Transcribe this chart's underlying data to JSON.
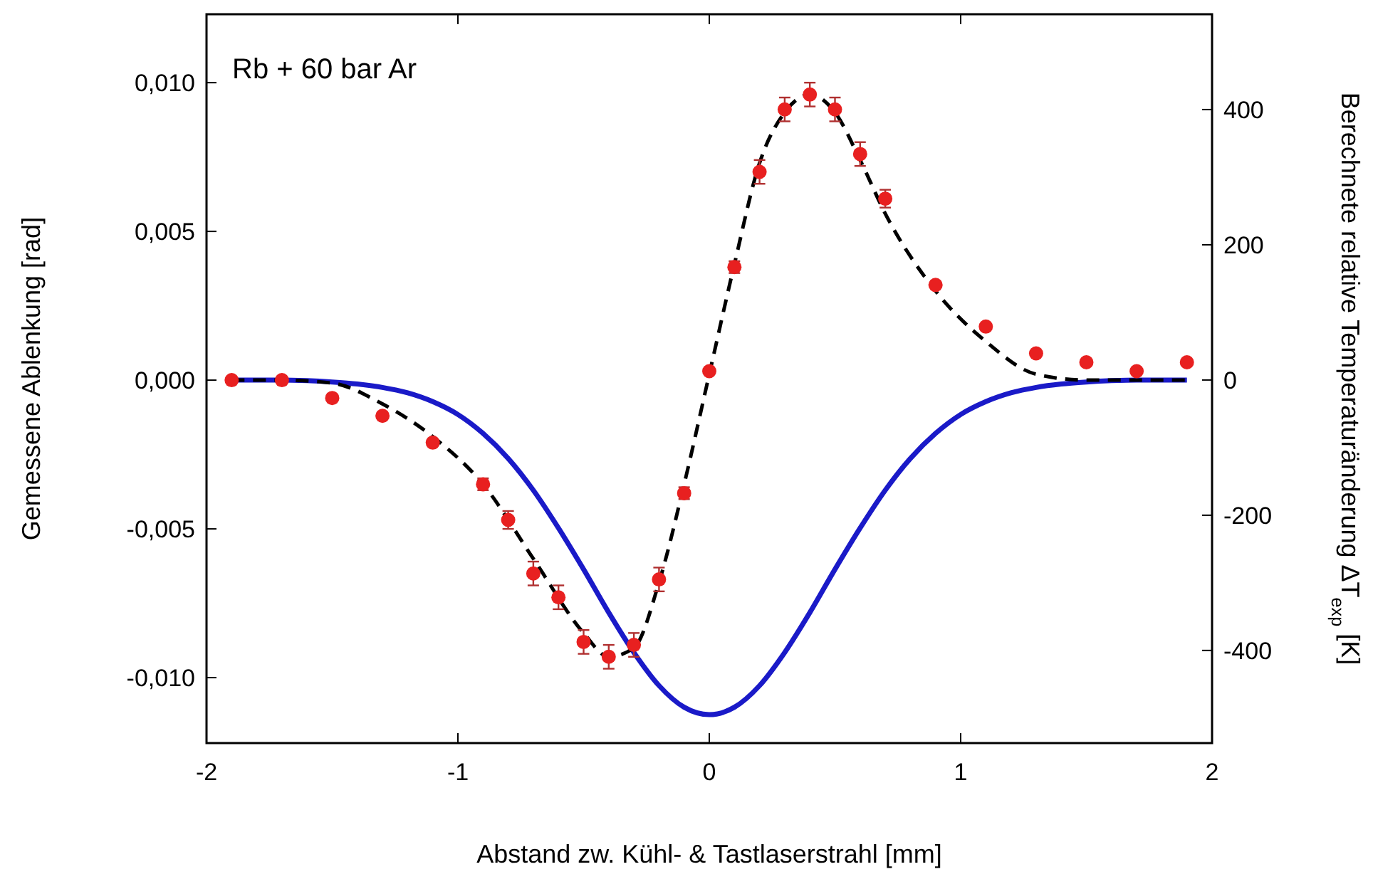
{
  "chart_data": {
    "type": "scatter",
    "xlabel": "Abstand zw. Kühl- & Tastlaserstrahl [mm]",
    "ylabel": "Gemessene Ablenkung [rad]",
    "y2label": "Berechnete relative Temperaturänderung ΔT$_{exp}$ [K]",
    "annotations": [
      "Rb + 60 bar Ar"
    ],
    "xlim": [
      -2,
      2
    ],
    "xticks": [
      -2,
      -1,
      0,
      1,
      2
    ],
    "ylim": [
      -0.0122,
      0.0123
    ],
    "yticks": [
      {
        "value": -0.01,
        "label": "-0,010"
      },
      {
        "value": -0.005,
        "label": "-0,005"
      },
      {
        "value": 0,
        "label": "0,000"
      },
      {
        "value": 0.005,
        "label": "0,005"
      },
      {
        "value": 0.01,
        "label": "0,010"
      }
    ],
    "y2lim": [
      -537,
      541
    ],
    "y2ticks": [
      -400,
      -200,
      0,
      200,
      400
    ],
    "grid": false,
    "series": [
      {
        "type": "line",
        "color": "#1a1ac8",
        "axis": "y2",
        "line_style": "solid",
        "x": [
          -1.9,
          -1.8,
          -1.7,
          -1.6,
          -1.5,
          -1.4,
          -1.3,
          -1.2,
          -1.1,
          -1.0,
          -0.9,
          -0.8,
          -0.7,
          -0.6,
          -0.5,
          -0.4,
          -0.3,
          -0.2,
          -0.1,
          0,
          0.1,
          0.2,
          0.3,
          0.4,
          0.5,
          0.6,
          0.7,
          0.8,
          0.9,
          1.0,
          1.1,
          1.2,
          1.3,
          1.4,
          1.5,
          1.6,
          1.7,
          1.8,
          1.9
        ],
        "values": [
          0,
          0,
          0,
          -1,
          -3,
          -6,
          -11,
          -19,
          -32,
          -51,
          -79,
          -116,
          -163,
          -219,
          -280,
          -344,
          -403,
          -452,
          -484,
          -495,
          -484,
          -452,
          -403,
          -344,
          -280,
          -219,
          -163,
          -116,
          -79,
          -51,
          -32,
          -19,
          -11,
          -6,
          -3,
          -1,
          0,
          0,
          0
        ]
      },
      {
        "type": "line",
        "color": "#000000",
        "line_style": "dashed",
        "x": [
          -1.9,
          -1.7,
          -1.5,
          -1.3,
          -1.1,
          -0.9,
          -0.7,
          -0.5,
          -0.4,
          -0.3,
          -0.2,
          -0.1,
          0,
          0.1,
          0.2,
          0.3,
          0.4,
          0.5,
          0.6,
          0.7,
          0.9,
          1.1,
          1.3,
          1.5,
          1.9
        ],
        "values": [
          0,
          0,
          -0.0001,
          -0.0008,
          -0.0019,
          -0.0035,
          -0.006,
          -0.0085,
          -0.0093,
          -0.009,
          -0.0068,
          -0.0035,
          0.0002,
          0.0039,
          0.0073,
          0.009,
          0.0096,
          0.009,
          0.0074,
          0.0056,
          0.003,
          0.0013,
          0.0002,
          0,
          0
        ]
      },
      {
        "color": "#e82020",
        "marker": "circle",
        "x": [
          -1.9,
          -1.7,
          -1.5,
          -1.3,
          -1.1,
          -0.9,
          -0.8,
          -0.7,
          -0.6,
          -0.5,
          -0.4,
          -0.3,
          -0.2,
          -0.1,
          0,
          0.1,
          0.2,
          0.3,
          0.4,
          0.5,
          0.6,
          0.7,
          0.9,
          1.1,
          1.3,
          1.5,
          1.7,
          1.9
        ],
        "values": [
          0,
          0,
          -0.0006,
          -0.0012,
          -0.0021,
          -0.0035,
          -0.0047,
          -0.0065,
          -0.0073,
          -0.0088,
          -0.0093,
          -0.0089,
          -0.0067,
          -0.0038,
          0.0003,
          0.0038,
          0.007,
          0.0091,
          0.0096,
          0.0091,
          0.0076,
          0.0061,
          0.0032,
          0.0018,
          0.0009,
          0.0006,
          0.0003,
          0.0006
        ],
        "errors": [
          null,
          null,
          null,
          null,
          null,
          0.0002,
          0.0003,
          0.0004,
          0.0004,
          0.0004,
          0.0004,
          0.0004,
          0.0004,
          0.0002,
          null,
          0.0002,
          0.0004,
          0.0004,
          0.0004,
          0.0004,
          0.0004,
          0.0003,
          null,
          null,
          null,
          null,
          null,
          null
        ]
      }
    ]
  }
}
